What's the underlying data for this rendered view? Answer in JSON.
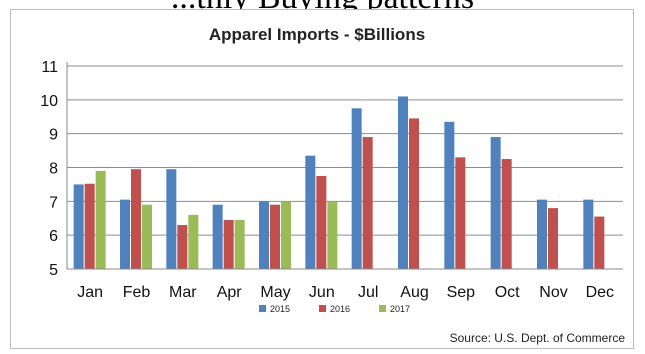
{
  "header": {
    "clipped_text": "...thly Buying patterns"
  },
  "chart_data": {
    "type": "bar",
    "title": "Apparel Imports - $Billions",
    "xlabel": "",
    "ylabel": "",
    "ylim": [
      5,
      11
    ],
    "yticks": [
      5,
      6,
      7,
      8,
      9,
      10,
      11
    ],
    "grid": true,
    "legend_position": "bottom",
    "categories": [
      "Jan",
      "Feb",
      "Mar",
      "Apr",
      "May",
      "Jun",
      "Jul",
      "Aug",
      "Sep",
      "Oct",
      "Nov",
      "Dec"
    ],
    "series": [
      {
        "name": "2015",
        "color": "#4f81bd",
        "values": [
          7.5,
          7.05,
          7.95,
          6.9,
          7.0,
          8.35,
          9.75,
          10.1,
          9.35,
          8.9,
          7.05,
          7.05
        ]
      },
      {
        "name": "2016",
        "color": "#c0504d",
        "values": [
          7.52,
          7.95,
          6.3,
          6.45,
          6.9,
          7.75,
          8.9,
          9.45,
          8.3,
          8.25,
          6.8,
          6.55
        ]
      },
      {
        "name": "2017",
        "color": "#9bbb59",
        "values": [
          7.9,
          6.9,
          6.6,
          6.45,
          7.0,
          7.0,
          null,
          null,
          null,
          null,
          null,
          null
        ]
      }
    ],
    "source": "Source: U.S. Dept. of Commerce"
  }
}
